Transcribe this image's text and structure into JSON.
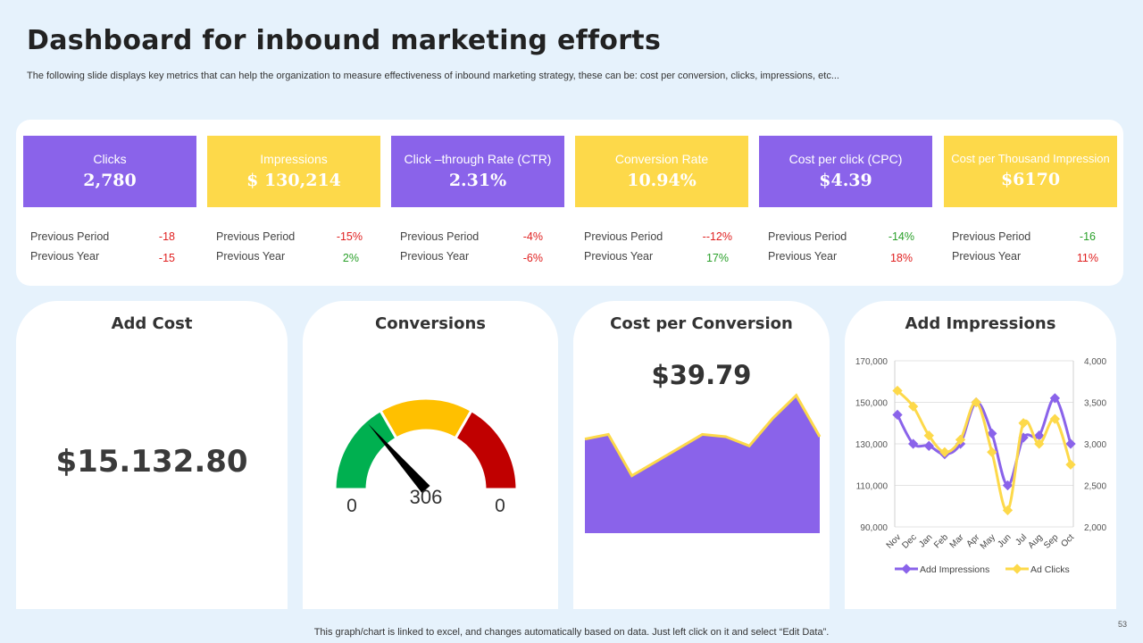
{
  "header": {
    "title": "Dashboard for inbound marketing efforts",
    "subtitle": "The following slide displays key metrics that can help the organization to measure effectiveness of inbound marketing strategy, these can be: cost per conversion, clicks, impressions, etc..."
  },
  "kpis": [
    {
      "label": "Clicks",
      "value": "2,780",
      "period_label": "Previous Period",
      "period_value": "-18",
      "year_label": "Previous Year",
      "year_value": "-15"
    },
    {
      "label": "Impressions",
      "value": "$ 130,214",
      "period_label": "Previous Period",
      "period_value": "-15%",
      "year_label": "Previous Year",
      "year_value": "2%"
    },
    {
      "label": "Click –through Rate (CTR)",
      "value": "2.31%",
      "period_label": "Previous Period",
      "period_value": "-4%",
      "year_label": "Previous Year",
      "year_value": "-6%"
    },
    {
      "label": "Conversion Rate",
      "value": "10.94%",
      "period_label": "Previous Period",
      "period_value": "--12%",
      "year_label": "Previous Year",
      "year_value": "17%"
    },
    {
      "label": "Cost per click (CPC)",
      "value": "$4.39",
      "period_label": "Previous Period",
      "period_value": "-14%",
      "year_label": "Previous Year",
      "year_value": "18%"
    },
    {
      "label": "Cost per Thousand Impression",
      "value": "$6170",
      "period_label": "Previous Period",
      "period_value": "-16",
      "year_label": "Previous Year",
      "year_value": "11%"
    }
  ],
  "cards": {
    "add_cost": {
      "title": "Add Cost",
      "value": "$15.132.80"
    },
    "conversions": {
      "title": "Conversions",
      "min": "0",
      "value": "306",
      "max": "0"
    },
    "cost_per_conversion": {
      "title": "Cost per Conversion",
      "value": "$39.79"
    },
    "add_impressions": {
      "title": "Add Impressions"
    }
  },
  "colors": {
    "purple": "#8a63ea",
    "yellow": "#fdd94a",
    "gauge_green": "#00b050",
    "gauge_yellow": "#ffc000",
    "gauge_red": "#c00000",
    "negative": "#e02020",
    "positive": "#2aa02a",
    "area_fill": "#8a63ea",
    "area_stroke": "#fdd94a",
    "series_impressions": "#8a63ea",
    "series_clicks": "#fdd94a"
  },
  "chart_data": [
    {
      "type": "gauge",
      "title": "Conversions",
      "min_label": "0",
      "max_label": "0",
      "value": 306,
      "segments": [
        "green",
        "yellow",
        "red"
      ],
      "needle_fraction": 0.27
    },
    {
      "type": "area",
      "title": "Cost per Conversion",
      "values": [
        41,
        43,
        25,
        31,
        37,
        43,
        42,
        38,
        50,
        60,
        42
      ],
      "ylim": [
        0,
        70
      ]
    },
    {
      "type": "line",
      "title": "Add Impressions",
      "categories": [
        "Nov",
        "Dec",
        "Jan",
        "Feb",
        "Mar",
        "Apr",
        "May",
        "Jun",
        "Jul",
        "Aug",
        "Sep",
        "Oct"
      ],
      "series": [
        {
          "name": "Add Impressions",
          "axis": "left",
          "values": [
            144000,
            130000,
            129000,
            125000,
            130000,
            150000,
            135000,
            110000,
            133000,
            134000,
            152000,
            130000
          ]
        },
        {
          "name": "Ad Clicks",
          "axis": "right",
          "values": [
            3640,
            3450,
            3100,
            2900,
            3050,
            3500,
            2900,
            2200,
            3250,
            3000,
            3300,
            2750
          ]
        }
      ],
      "y_left": {
        "min": 90000,
        "max": 170000,
        "ticks": [
          "90,000",
          "110,000",
          "130,000",
          "150,000",
          "170,000"
        ]
      },
      "y_right": {
        "min": 2000,
        "max": 4000,
        "ticks": [
          "2,000",
          "2,500",
          "3,000",
          "3,500",
          "4,000"
        ]
      },
      "legend": "bottom"
    }
  ],
  "footer": {
    "note": "This graph/chart is linked to excel,  and changes automatically based on data. Just left click on it and select “Edit Data”.",
    "page": "53"
  }
}
